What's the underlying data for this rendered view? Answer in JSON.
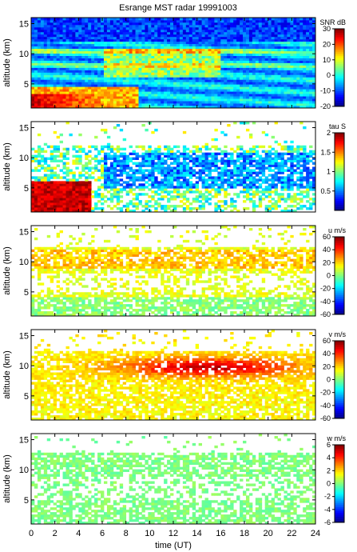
{
  "title": "Esrange MST radar 19991003",
  "xlabel": "time (UT)",
  "chart_data": [
    {
      "type": "heatmap",
      "quantity": "SNR",
      "colorbar_label": "SNR dB",
      "ylabel": "altitude (km)",
      "xlim": [
        0,
        24
      ],
      "ylim": [
        1,
        16
      ],
      "yticks": [
        5,
        10,
        15
      ],
      "clim": [
        -20,
        30
      ],
      "colorbar_ticks": [
        -20,
        -10,
        0,
        10,
        20,
        30
      ],
      "colormap": "jet",
      "coverage": "full"
    },
    {
      "type": "heatmap",
      "quantity": "tau",
      "colorbar_label": "tau S",
      "ylabel": "altitude (km)",
      "xlim": [
        0,
        24
      ],
      "ylim": [
        1,
        16
      ],
      "yticks": [
        5,
        10,
        15
      ],
      "clim": [
        0,
        2
      ],
      "colorbar_ticks": [
        0.5,
        1,
        1.5,
        2
      ],
      "colormap": "jet",
      "coverage": "sparse"
    },
    {
      "type": "heatmap",
      "quantity": "u",
      "colorbar_label": "u m/s",
      "ylabel": "altitude (km)",
      "xlim": [
        0,
        24
      ],
      "ylim": [
        1,
        16
      ],
      "yticks": [
        5,
        10,
        15
      ],
      "clim": [
        -60,
        60
      ],
      "colorbar_ticks": [
        -60,
        -40,
        -20,
        0,
        20,
        40,
        60
      ],
      "colormap": "jet",
      "coverage": "sparse"
    },
    {
      "type": "heatmap",
      "quantity": "v",
      "colorbar_label": "v m/s",
      "ylabel": "altitude (km)",
      "xlim": [
        0,
        24
      ],
      "ylim": [
        1,
        16
      ],
      "yticks": [
        5,
        10,
        15
      ],
      "clim": [
        -60,
        60
      ],
      "colorbar_ticks": [
        -60,
        -40,
        -20,
        0,
        20,
        40,
        60
      ],
      "colormap": "jet",
      "coverage": "sparse"
    },
    {
      "type": "heatmap",
      "quantity": "w",
      "colorbar_label": "w m/s",
      "ylabel": "altitude (km)",
      "xlim": [
        0,
        24
      ],
      "ylim": [
        1,
        16
      ],
      "yticks": [
        5,
        10,
        15
      ],
      "clim": [
        -6,
        6
      ],
      "colorbar_ticks": [
        -6,
        -4,
        -2,
        0,
        2,
        4,
        6
      ],
      "colormap": "jet",
      "coverage": "sparse"
    }
  ],
  "xticks": [
    0,
    2,
    4,
    6,
    8,
    10,
    12,
    14,
    16,
    18,
    20,
    22,
    24
  ]
}
